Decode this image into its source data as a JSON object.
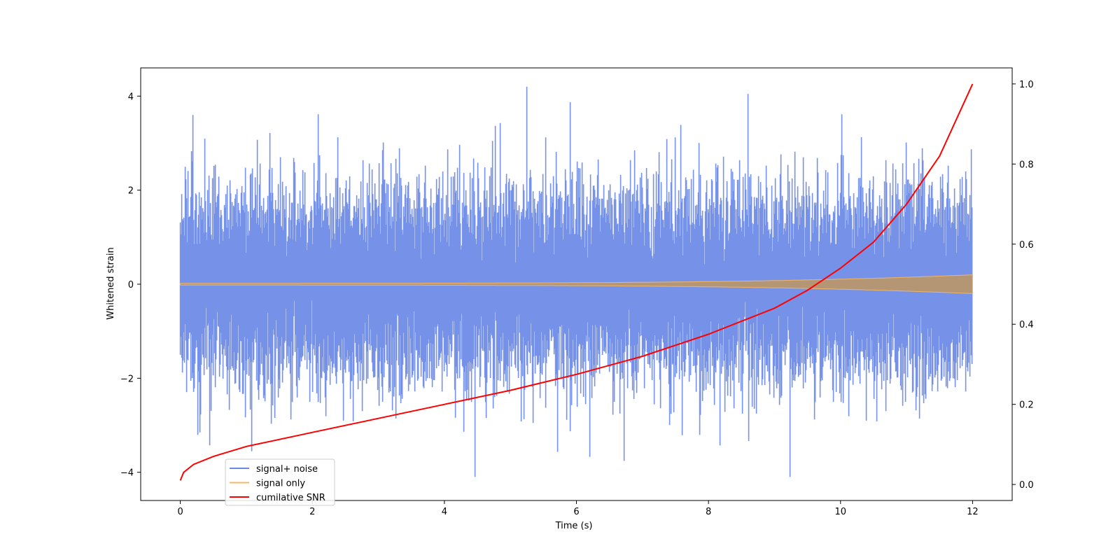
{
  "chart_data": {
    "type": "line",
    "title": "",
    "xlabel": "Time (s)",
    "ylabel": "Whitened strain",
    "ylabel_right": "",
    "xlim": [
      -0.6,
      12.6
    ],
    "ylim": [
      -4.6,
      4.6
    ],
    "ylim_right": [
      -0.04,
      1.04
    ],
    "x_ticks": [
      0,
      2,
      4,
      6,
      8,
      10,
      12
    ],
    "y_ticks": [
      -4,
      -2,
      0,
      2,
      4
    ],
    "y_ticks_right": [
      0.0,
      0.2,
      0.4,
      0.6,
      0.8,
      1.0
    ],
    "x_tick_labels": [
      "0",
      "2",
      "4",
      "6",
      "8",
      "10",
      "12"
    ],
    "y_tick_labels": [
      "−4",
      "−2",
      "0",
      "2",
      "4"
    ],
    "y_tick_labels_right": [
      "0.0",
      "0.2",
      "0.4",
      "0.6",
      "0.8",
      "1.0"
    ],
    "grid": false,
    "legend_position": "lower-left",
    "series": [
      {
        "name": "signal+ noise",
        "axis": "left",
        "color": "#6a89e6",
        "kind": "noise",
        "x_range": [
          0,
          12
        ],
        "spread_std": 1.05,
        "peak_max": 4.2,
        "peak_min": -4.1
      },
      {
        "name": "signal only",
        "axis": "left",
        "color": "#f5b765",
        "kind": "chirp",
        "x_range": [
          0,
          12
        ],
        "amplitude_start": 0.02,
        "amplitude_end": 0.2
      },
      {
        "name": "cumilative SNR",
        "axis": "right",
        "color": "#ff0000",
        "kind": "line",
        "x": [
          0,
          0.05,
          0.2,
          0.5,
          1,
          2,
          3,
          4,
          5,
          6,
          7,
          8,
          9,
          9.5,
          10,
          10.5,
          11,
          11.5,
          12
        ],
        "y": [
          0.01,
          0.03,
          0.05,
          0.07,
          0.095,
          0.13,
          0.165,
          0.2,
          0.235,
          0.275,
          0.32,
          0.375,
          0.44,
          0.485,
          0.54,
          0.605,
          0.7,
          0.82,
          1.0
        ]
      }
    ]
  }
}
